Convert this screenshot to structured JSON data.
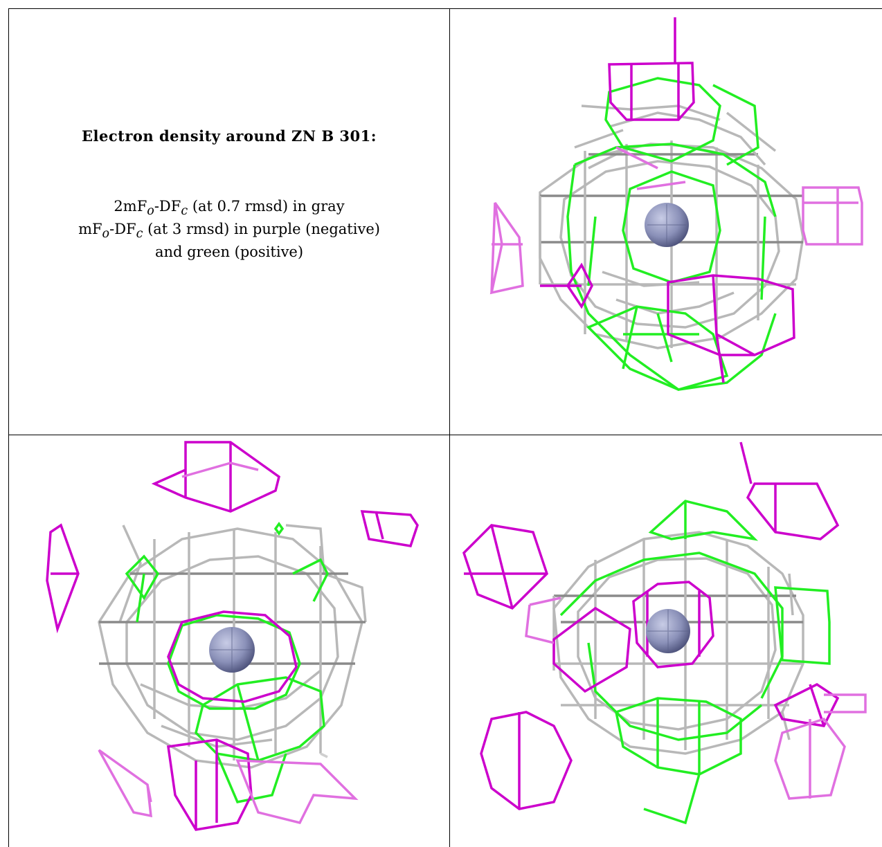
{
  "caption": {
    "title": "Electron density around ZN B 301:",
    "line1": {
      "pre": "2mF",
      "sub1": "o",
      "mid": "-DF",
      "sub2": "c",
      "post": " (at 0.7 rmsd) in gray"
    },
    "line2": {
      "pre": "mF",
      "sub1": "o",
      "mid": "-DF",
      "sub2": "c",
      "post": " (at 3 rmsd) in purple (negative)"
    },
    "line3": "and green (positive)"
  },
  "colors": {
    "gray_mesh": "#b8b8b8",
    "gray_mesh_dark": "#808080",
    "green_mesh": "#22ee22",
    "purple_mesh": "#cc00cc",
    "purple_mesh_light": "#e070e0",
    "zinc_sphere": "#8a90b8"
  },
  "icons": [
    "zinc-sphere-icon"
  ]
}
